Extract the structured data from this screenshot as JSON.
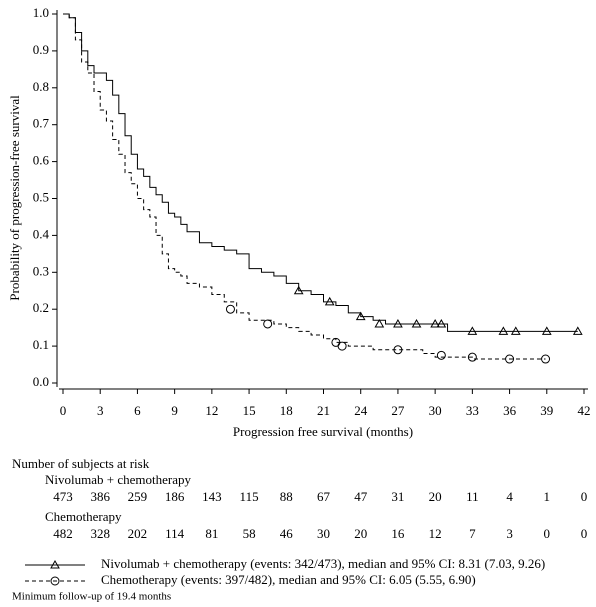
{
  "chart_data": {
    "type": "step",
    "y_label": "Probability of progression-free survival",
    "x_label": "Progression free survival (months)",
    "xlim": [
      0,
      42
    ],
    "xticks": [
      0,
      3,
      6,
      9,
      12,
      15,
      18,
      21,
      24,
      27,
      30,
      33,
      36,
      39,
      42
    ],
    "ylim": [
      0,
      1
    ],
    "yticks": [
      {
        "value": 0,
        "label": "0.0"
      },
      0.1,
      0.2,
      0.3,
      0.4,
      0.5,
      0.6,
      0.7,
      0.8,
      0.9,
      {
        "value": 1,
        "label": "1.0"
      }
    ],
    "series": [
      {
        "name": "Nivolumab + chemotherapy (events: 342/473), median and 95% CI: 8.31 (7.03, 9.26)",
        "color": "#000000",
        "line_style": "solid",
        "marker": "triangle",
        "x": [
          0,
          0.5,
          1,
          1.5,
          2,
          2.5,
          3,
          3.5,
          4,
          4.5,
          5,
          5.5,
          6,
          6.5,
          7,
          7.5,
          8,
          8.5,
          9,
          9.5,
          10,
          11,
          12,
          13,
          14,
          15,
          16,
          17,
          18,
          19,
          20,
          21,
          22,
          23,
          24,
          25,
          26,
          28,
          30,
          31,
          41.5
        ],
        "values": [
          1.0,
          0.99,
          0.95,
          0.9,
          0.86,
          0.84,
          0.84,
          0.82,
          0.78,
          0.73,
          0.67,
          0.62,
          0.58,
          0.56,
          0.53,
          0.51,
          0.49,
          0.46,
          0.45,
          0.43,
          0.41,
          0.38,
          0.37,
          0.36,
          0.35,
          0.31,
          0.3,
          0.29,
          0.27,
          0.25,
          0.24,
          0.22,
          0.21,
          0.19,
          0.18,
          0.17,
          0.16,
          0.16,
          0.16,
          0.14,
          0.14
        ],
        "censor_x": [
          19,
          21.5,
          24,
          25.5,
          27,
          28.5,
          30,
          30.5,
          33,
          35.5,
          36.5,
          39,
          41.5
        ],
        "censor_y": [
          0.25,
          0.22,
          0.18,
          0.16,
          0.16,
          0.16,
          0.16,
          0.16,
          0.14,
          0.14,
          0.14,
          0.14,
          0.14
        ]
      },
      {
        "name": "Chemotherapy (events: 397/482), median and 95% CI: 6.05 (5.55, 6.90)",
        "color": "#000000",
        "line_style": "dashed",
        "marker": "circle",
        "x": [
          0,
          0.5,
          1,
          1.5,
          2,
          2.5,
          3,
          3.5,
          4,
          4.5,
          5,
          5.5,
          6,
          6.5,
          7,
          7.5,
          8,
          8.5,
          9,
          9.5,
          10,
          11,
          12,
          13,
          14,
          15,
          16,
          17,
          18,
          19,
          20,
          21,
          22,
          23,
          25,
          27,
          29,
          30,
          32,
          33,
          38.9
        ],
        "values": [
          1.0,
          0.99,
          0.93,
          0.87,
          0.84,
          0.79,
          0.74,
          0.71,
          0.66,
          0.62,
          0.57,
          0.54,
          0.5,
          0.47,
          0.45,
          0.4,
          0.35,
          0.31,
          0.3,
          0.29,
          0.27,
          0.26,
          0.24,
          0.22,
          0.19,
          0.17,
          0.17,
          0.16,
          0.15,
          0.14,
          0.13,
          0.12,
          0.11,
          0.1,
          0.09,
          0.09,
          0.08,
          0.07,
          0.07,
          0.065,
          0.065
        ],
        "censor_x": [
          13.5,
          16.5,
          22,
          22.5,
          27,
          30.5,
          33,
          36,
          38.9
        ],
        "censor_y": [
          0.2,
          0.16,
          0.11,
          0.1,
          0.09,
          0.075,
          0.07,
          0.065,
          0.065
        ]
      }
    ],
    "at_risk": {
      "title": "Number of subjects at risk",
      "groups": [
        {
          "name": "Nivolumab + chemotherapy",
          "values": [
            473,
            386,
            259,
            186,
            143,
            115,
            88,
            67,
            47,
            31,
            20,
            11,
            4,
            1,
            0
          ]
        },
        {
          "name": "Chemotherapy",
          "values": [
            482,
            328,
            202,
            114,
            81,
            58,
            46,
            30,
            20,
            16,
            12,
            7,
            3,
            0,
            0
          ]
        }
      ]
    },
    "footnote": "Minimum follow-up of 19.4 months"
  }
}
